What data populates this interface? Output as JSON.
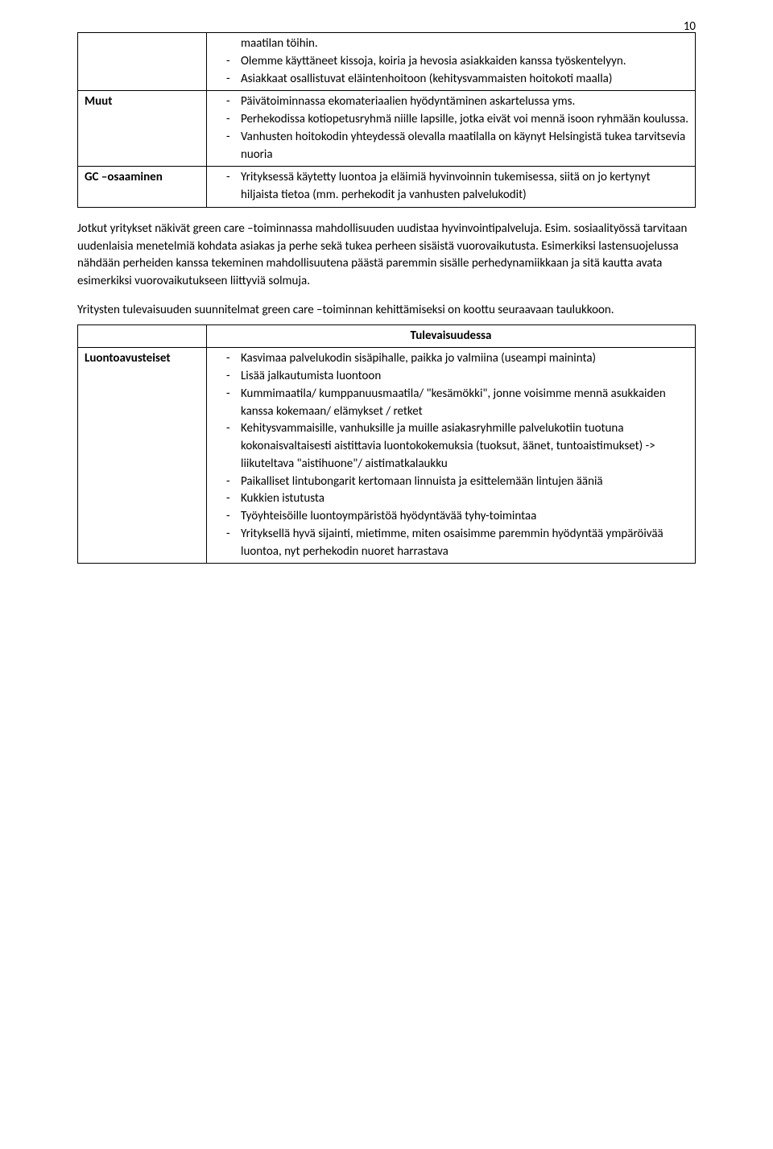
{
  "pageNumber": "10",
  "table1": {
    "rows": [
      {
        "label": "",
        "items": [
          {
            "text": "maatilan töihin.",
            "cont": true
          },
          {
            "text": "Olemme käyttäneet kissoja, koiria ja hevosia asiakkaiden kanssa työskentelyyn."
          },
          {
            "text": "Asiakkaat osallistuvat eläintenhoitoon (kehitysvammaisten hoitokoti maalla)"
          }
        ]
      },
      {
        "label": "Muut",
        "items": [
          {
            "text": "Päivätoiminnassa ekomateriaalien hyödyntäminen askartelussa yms."
          },
          {
            "text": "Perhekodissa kotiopetusryhmä niille lapsille, jotka eivät voi mennä isoon ryhmään koulussa."
          },
          {
            "text": "Vanhusten hoitokodin yhteydessä olevalla maatilalla on käynyt Helsingistä tukea tarvitsevia nuoria"
          }
        ]
      },
      {
        "label": "GC –osaaminen",
        "items": [
          {
            "text": "Yrityksessä käytetty luontoa ja eläimiä hyvinvoinnin tukemisessa, siitä on jo kertynyt hiljaista tietoa (mm. perhekodit ja vanhusten palvelukodit)"
          }
        ]
      }
    ]
  },
  "para1": "Jotkut yritykset näkivät green care –toiminnassa mahdollisuuden uudistaa hyvinvointipalveluja. Esim. sosiaalityössä tarvitaan uudenlaisia menetelmiä kohdata asiakas ja perhe sekä tukea perheen sisäistä vuorovaikutusta. Esimerkiksi lastensuojelussa nähdään perheiden kanssa tekeminen mahdollisuutena päästä paremmin sisälle perhedynamiikkaan ja sitä kautta avata esimerkiksi vuorovaikutukseen liittyviä solmuja.",
  "para2": "Yritysten tulevaisuuden suunnitelmat green care –toiminnan kehittämiseksi on koottu seuraavaan taulukkoon.",
  "table2": {
    "header": "Tulevaisuudessa",
    "rowLabel": "Luontoavusteiset",
    "items": [
      {
        "text": "Kasvimaa palvelukodin sisäpihalle, paikka jo valmiina (useampi maininta)"
      },
      {
        "text": "Lisää jalkautumista luontoon"
      },
      {
        "text": "Kummimaatila/ kumppanuusmaatila/ \"kesämökki\", jonne voisimme mennä asukkaiden kanssa kokemaan/ elämykset / retket"
      },
      {
        "text": "Kehitysvammaisille, vanhuksille ja muille asiakasryhmille palvelukotiin tuotuna kokonaisvaltaisesti aistittavia luontokokemuksia (tuoksut, äänet, tuntoaistimukset) -> liikuteltava \"aistihuone\"/ aistimatkalaukku"
      },
      {
        "text": "Paikalliset lintubongarit kertomaan linnuista ja esittelemään lintujen ääniä"
      },
      {
        "text": "Kukkien istutusta"
      },
      {
        "text": "Työyhteisöille luontoympäristöä hyödyntävää tyhy-toimintaa"
      },
      {
        "text": "Yrityksellä hyvä sijainti, mietimme, miten osaisimme paremmin hyödyntää ympäröivää luontoa, nyt perhekodin nuoret harrastava"
      }
    ]
  }
}
